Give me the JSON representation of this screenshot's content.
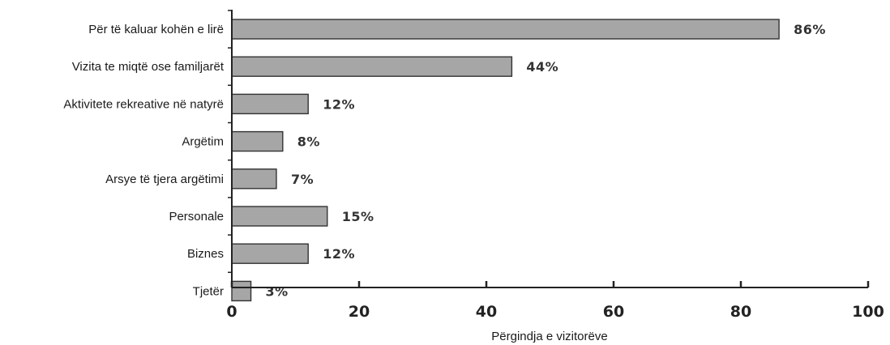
{
  "chart_data": {
    "type": "bar",
    "orientation": "horizontal",
    "categories": [
      "Për të kaluar kohën e lirë",
      "Vizita te miqtë ose familjarët",
      "Aktivitete rekreative në natyrë",
      "Argëtim",
      "Arsye të tjera argëtimi",
      "Personale",
      "Biznes",
      "Tjetër"
    ],
    "values": [
      86,
      44,
      12,
      8,
      7,
      15,
      12,
      3
    ],
    "value_labels": [
      "86%",
      "44%",
      "12%",
      "8%",
      "7%",
      "15%",
      "12%",
      "3%"
    ],
    "xlabel": "Përgindja e vizitorëve",
    "ylabel": "",
    "xlim": [
      0,
      100
    ],
    "xticks": [
      0,
      20,
      40,
      60,
      80,
      100
    ],
    "xtick_labels": [
      "0",
      "20",
      "40",
      "60",
      "80",
      "100"
    ],
    "grid": false,
    "colors": {
      "bar_fill": "#a6a6a6",
      "bar_stroke": "#333333",
      "axis": "#222222"
    }
  }
}
